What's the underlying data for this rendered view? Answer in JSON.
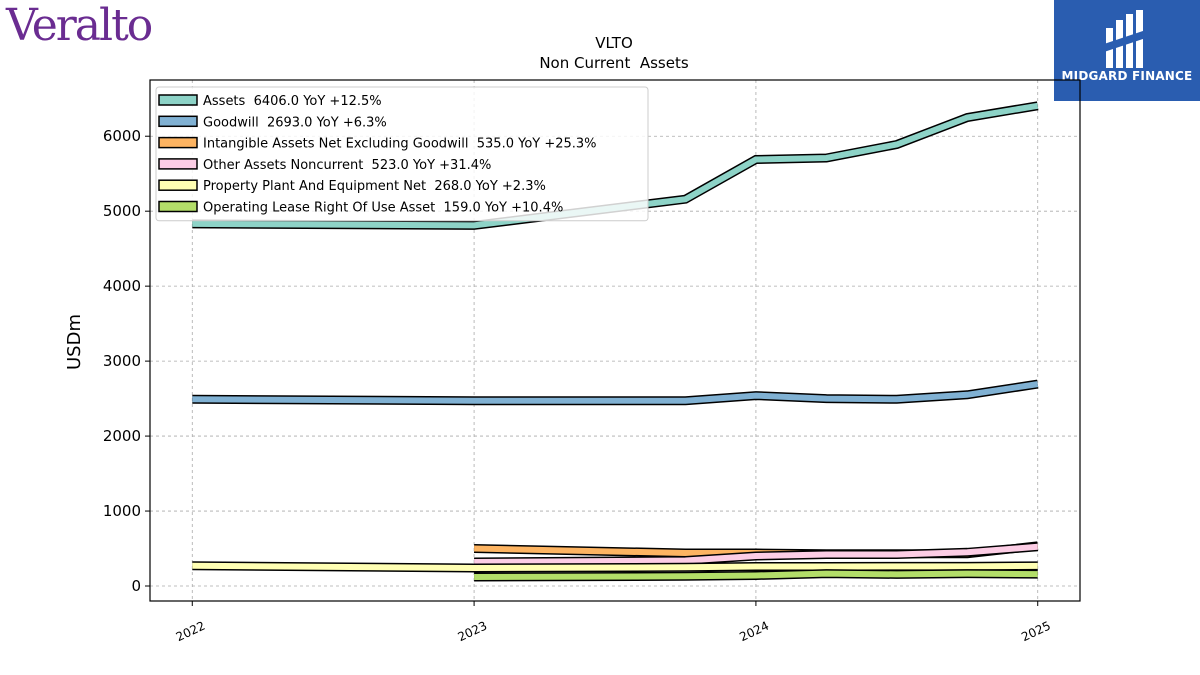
{
  "brand": {
    "logo_text": "Veralto",
    "badge_text": "MIDGARD FINANCE"
  },
  "chart_data": {
    "type": "line",
    "title": "VLTO",
    "subtitle": "Non Current  Assets",
    "ylabel": "USDm",
    "xlabel": "",
    "x_ticks": [
      "2022",
      "2023",
      "2024",
      "2025"
    ],
    "y_ticks": [
      0,
      1000,
      2000,
      3000,
      4000,
      5000,
      6000
    ],
    "ylim": [
      -200,
      6750
    ],
    "xlim": [
      2021.85,
      2025.15
    ],
    "grid": true,
    "legend_position": "top-left",
    "series": [
      {
        "name": "Assets",
        "legend": "Assets  6406.0 YoY +12.5%",
        "color": "#8dd3c7",
        "x": [
          2022.0,
          2023.0,
          2023.75,
          2024.0,
          2024.25,
          2024.5,
          2024.75,
          2025.0
        ],
        "y": [
          4830,
          4810,
          5160,
          5690,
          5710,
          5890,
          6250,
          6406
        ]
      },
      {
        "name": "Goodwill",
        "legend": "Goodwill  2693.0 YoY +6.3%",
        "color": "#80b1d3",
        "x": [
          2022.0,
          2023.0,
          2023.75,
          2024.0,
          2024.25,
          2024.5,
          2024.75,
          2025.0
        ],
        "y": [
          2490,
          2470,
          2470,
          2540,
          2500,
          2490,
          2550,
          2693
        ]
      },
      {
        "name": "Intangible Assets Net Excluding Goodwill",
        "legend": "Intangible Assets Net Excluding Goodwill  535.0 YoY +25.3%",
        "color": "#fdb462",
        "x": [
          2023.0,
          2023.75,
          2024.0,
          2024.25,
          2024.5,
          2024.75,
          2025.0
        ],
        "y": [
          500,
          440,
          440,
          430,
          430,
          430,
          535
        ]
      },
      {
        "name": "Other Assets Noncurrent",
        "legend": "Other Assets Noncurrent  523.0 YoY +31.4%",
        "color": "#fccde5",
        "x": [
          2023.0,
          2023.75,
          2024.0,
          2024.25,
          2024.5,
          2024.75,
          2025.0
        ],
        "y": [
          320,
          340,
          400,
          420,
          420,
          450,
          523
        ]
      },
      {
        "name": "Property Plant And Equipment Net",
        "legend": "Property Plant And Equipment Net  268.0 YoY +2.3%",
        "color": "#ffffb3",
        "x": [
          2022.0,
          2023.0,
          2023.75,
          2024.0,
          2024.25,
          2024.5,
          2024.75,
          2025.0
        ],
        "y": [
          270,
          240,
          250,
          260,
          260,
          262,
          262,
          268
        ]
      },
      {
        "name": "Operating Lease Right Of Use Asset",
        "legend": "Operating Lease Right Of Use Asset  159.0 YoY +10.4%",
        "color": "#b3de69",
        "x": [
          2023.0,
          2023.75,
          2024.0,
          2024.25,
          2024.5,
          2024.75,
          2025.0
        ],
        "y": [
          120,
          130,
          140,
          165,
          155,
          165,
          159
        ]
      }
    ]
  }
}
